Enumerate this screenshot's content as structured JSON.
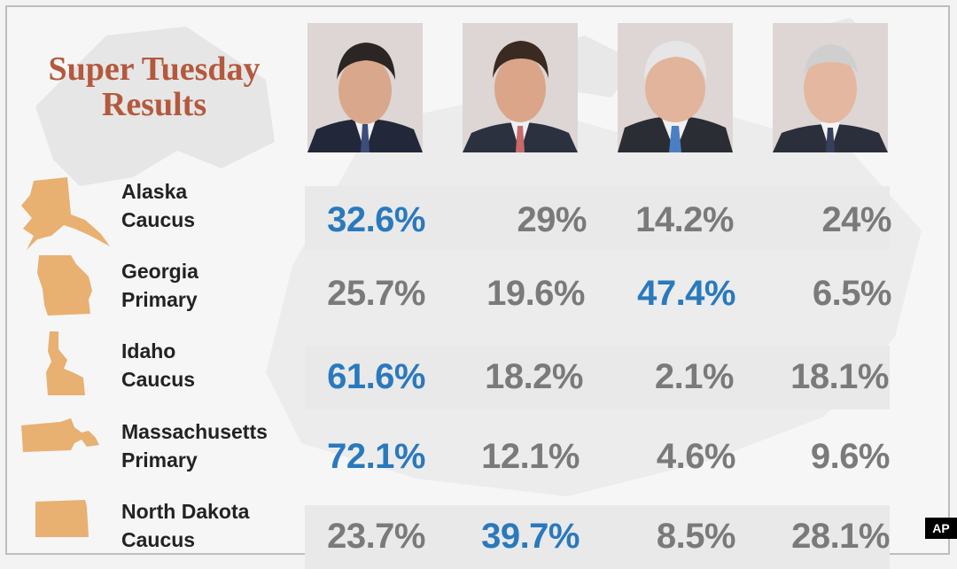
{
  "chart_data": {
    "type": "table",
    "title": "Super Tuesday Results",
    "columns": [
      "",
      "",
      "",
      ""
    ],
    "rows": [
      {
        "state": "Alaska",
        "contest": "Caucus",
        "values": [
          "32.6%",
          "29%",
          "14.2%",
          "24%"
        ],
        "winner": 0
      },
      {
        "state": "Georgia",
        "contest": "Primary",
        "values": [
          "25.7%",
          "19.6%",
          "47.4%",
          "6.5%"
        ],
        "winner": 2
      },
      {
        "state": "Idaho",
        "contest": "Caucus",
        "values": [
          "61.6%",
          "18.2%",
          "2.1%",
          "18.1%"
        ],
        "winner": 0
      },
      {
        "state": "Massachusetts",
        "contest": "Primary",
        "values": [
          "72.1%",
          "12.1%",
          "4.6%",
          "9.6%"
        ],
        "winner": 0
      },
      {
        "state": "North Dakota",
        "contest": "Caucus",
        "values": [
          "23.7%",
          "39.7%",
          "8.5%",
          "28.1%"
        ],
        "winner": 1
      }
    ],
    "colors": {
      "title": "#b4593d",
      "winner": "#2a79bd",
      "value": "#7a7a7a",
      "state_icon": "#e8b071",
      "stripe": "#e9e9e9"
    }
  },
  "credit": "AP"
}
